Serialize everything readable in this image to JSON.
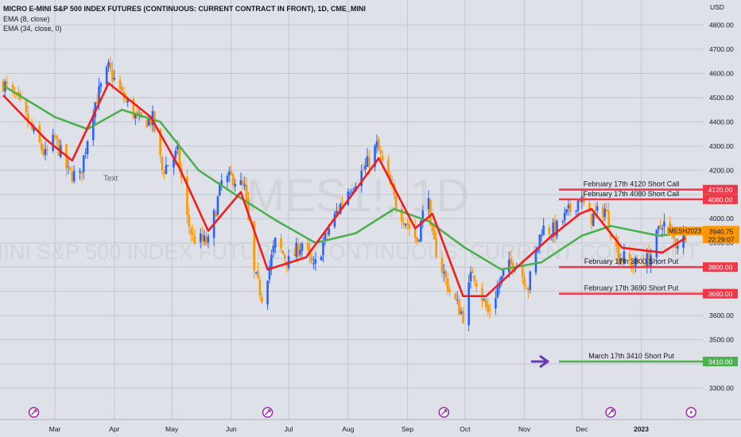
{
  "header": {
    "title": "MICRO E-MINI S&P 500 INDEX FUTURES (CONTINUOUS: CURRENT CONTRACT IN FRONT), 1D, CME_MINI",
    "ema8": "EMA (8, close)",
    "ema34": "EMA (34, close, 0)"
  },
  "watermark": {
    "symbol": "MES1!, 1D",
    "name": "MICRO E-MINI S&P 500 INDEX FUTURES (CONTINUOUS: CURRENT CONTRACT IN FRONT)"
  },
  "colors": {
    "background": "#dfe1e8",
    "grid": "#c4c7cf",
    "candle_up": "#2962ff",
    "candle_down": "#ff9800",
    "ema8": "#f21d1d",
    "ema34": "#4caf50",
    "level_line": "#f23645",
    "target_line": "#4caf50",
    "arrow": "#673ab7",
    "price_tag": "#ff9800"
  },
  "chart_data": {
    "type": "candlestick",
    "currency_label": "USD",
    "ylim": [
      3260,
      4880
    ],
    "y_ticks": [
      "3300.00",
      "3400.00",
      "3500.00",
      "3600.00",
      "3700.00",
      "3800.00",
      "3900.00",
      "4000.00",
      "4100.00",
      "4200.00",
      "4300.00",
      "4400.00",
      "4500.00",
      "4600.00",
      "4700.00",
      "4800.00"
    ],
    "x_ticks": [
      "Mar",
      "Apr",
      "May",
      "Jun",
      "Jul",
      "Aug",
      "Sep",
      "Oct",
      "Nov",
      "Dec",
      "2023"
    ],
    "x_tick_dates": [
      "2022-03-01",
      "2022-04-01",
      "2022-05-01",
      "2022-06-01",
      "2022-07-01",
      "2022-08-01",
      "2022-09-01",
      "2022-10-01",
      "2022-11-01",
      "2022-12-01",
      "2023-01-01"
    ],
    "date_range": [
      "2022-02-02",
      "2023-01-24"
    ],
    "close_series": [
      {
        "date": "2022-02-02",
        "close": 4560
      },
      {
        "date": "2022-02-10",
        "close": 4480
      },
      {
        "date": "2022-02-18",
        "close": 4350
      },
      {
        "date": "2022-02-24",
        "close": 4260
      },
      {
        "date": "2022-03-01",
        "close": 4330
      },
      {
        "date": "2022-03-08",
        "close": 4190
      },
      {
        "date": "2022-03-14",
        "close": 4170
      },
      {
        "date": "2022-03-21",
        "close": 4460
      },
      {
        "date": "2022-03-29",
        "close": 4620
      },
      {
        "date": "2022-04-05",
        "close": 4510
      },
      {
        "date": "2022-04-14",
        "close": 4400
      },
      {
        "date": "2022-04-21",
        "close": 4410
      },
      {
        "date": "2022-04-26",
        "close": 4200
      },
      {
        "date": "2022-05-04",
        "close": 4270
      },
      {
        "date": "2022-05-09",
        "close": 4000
      },
      {
        "date": "2022-05-12",
        "close": 3920
      },
      {
        "date": "2022-05-20",
        "close": 3900
      },
      {
        "date": "2022-05-27",
        "close": 4150
      },
      {
        "date": "2022-06-02",
        "close": 4170
      },
      {
        "date": "2022-06-08",
        "close": 4120
      },
      {
        "date": "2022-06-13",
        "close": 3770
      },
      {
        "date": "2022-06-17",
        "close": 3680
      },
      {
        "date": "2022-06-24",
        "close": 3900
      },
      {
        "date": "2022-07-01",
        "close": 3820
      },
      {
        "date": "2022-07-08",
        "close": 3900
      },
      {
        "date": "2022-07-14",
        "close": 3790
      },
      {
        "date": "2022-07-22",
        "close": 3960
      },
      {
        "date": "2022-08-01",
        "close": 4120
      },
      {
        "date": "2022-08-10",
        "close": 4210
      },
      {
        "date": "2022-08-16",
        "close": 4300
      },
      {
        "date": "2022-08-26",
        "close": 4060
      },
      {
        "date": "2022-09-06",
        "close": 3910
      },
      {
        "date": "2022-09-12",
        "close": 4120
      },
      {
        "date": "2022-09-13",
        "close": 3940
      },
      {
        "date": "2022-09-23",
        "close": 3700
      },
      {
        "date": "2022-09-30",
        "close": 3600
      },
      {
        "date": "2022-10-05",
        "close": 3790
      },
      {
        "date": "2022-10-13",
        "close": 3610
      },
      {
        "date": "2022-10-21",
        "close": 3770
      },
      {
        "date": "2022-10-27",
        "close": 3830
      },
      {
        "date": "2022-11-03",
        "close": 3720
      },
      {
        "date": "2022-11-10",
        "close": 3960
      },
      {
        "date": "2022-11-17",
        "close": 3950
      },
      {
        "date": "2022-11-30",
        "close": 4090
      },
      {
        "date": "2022-12-05",
        "close": 4000
      },
      {
        "date": "2022-12-13",
        "close": 4040
      },
      {
        "date": "2022-12-20",
        "close": 3850
      },
      {
        "date": "2022-12-28",
        "close": 3810
      },
      {
        "date": "2023-01-05",
        "close": 3830
      },
      {
        "date": "2023-01-12",
        "close": 3990
      },
      {
        "date": "2023-01-19",
        "close": 3900
      },
      {
        "date": "2023-01-24",
        "close": 3940
      }
    ],
    "ema8_values": [
      {
        "date": "2022-02-02",
        "value": 4510
      },
      {
        "date": "2022-02-24",
        "value": 4330
      },
      {
        "date": "2022-03-10",
        "value": 4240
      },
      {
        "date": "2022-03-29",
        "value": 4560
      },
      {
        "date": "2022-04-20",
        "value": 4420
      },
      {
        "date": "2022-05-05",
        "value": 4210
      },
      {
        "date": "2022-05-20",
        "value": 3950
      },
      {
        "date": "2022-06-06",
        "value": 4110
      },
      {
        "date": "2022-06-20",
        "value": 3790
      },
      {
        "date": "2022-07-10",
        "value": 3840
      },
      {
        "date": "2022-08-05",
        "value": 4120
      },
      {
        "date": "2022-08-17",
        "value": 4250
      },
      {
        "date": "2022-09-05",
        "value": 3960
      },
      {
        "date": "2022-09-14",
        "value": 4020
      },
      {
        "date": "2022-09-30",
        "value": 3680
      },
      {
        "date": "2022-10-12",
        "value": 3680
      },
      {
        "date": "2022-10-31",
        "value": 3820
      },
      {
        "date": "2022-11-14",
        "value": 3920
      },
      {
        "date": "2022-11-30",
        "value": 4020
      },
      {
        "date": "2022-12-06",
        "value": 4040
      },
      {
        "date": "2022-12-22",
        "value": 3880
      },
      {
        "date": "2023-01-12",
        "value": 3860
      },
      {
        "date": "2023-01-24",
        "value": 3920
      }
    ],
    "ema34_values": [
      {
        "date": "2022-02-02",
        "value": 4550
      },
      {
        "date": "2022-03-01",
        "value": 4420
      },
      {
        "date": "2022-03-18",
        "value": 4370
      },
      {
        "date": "2022-04-05",
        "value": 4450
      },
      {
        "date": "2022-04-25",
        "value": 4400
      },
      {
        "date": "2022-05-15",
        "value": 4200
      },
      {
        "date": "2022-06-05",
        "value": 4090
      },
      {
        "date": "2022-06-25",
        "value": 3990
      },
      {
        "date": "2022-07-15",
        "value": 3900
      },
      {
        "date": "2022-08-05",
        "value": 3940
      },
      {
        "date": "2022-08-25",
        "value": 4040
      },
      {
        "date": "2022-09-12",
        "value": 3990
      },
      {
        "date": "2022-10-01",
        "value": 3880
      },
      {
        "date": "2022-10-20",
        "value": 3790
      },
      {
        "date": "2022-11-10",
        "value": 3820
      },
      {
        "date": "2022-12-01",
        "value": 3930
      },
      {
        "date": "2022-12-16",
        "value": 3970
      },
      {
        "date": "2023-01-10",
        "value": 3930
      },
      {
        "date": "2023-01-24",
        "value": 3940
      }
    ]
  },
  "levels": [
    {
      "price": 4120,
      "text": "February 17th 4120 Short Call",
      "tag": "4120.00",
      "kind": "red"
    },
    {
      "price": 4080,
      "text": "February 17th 4080 Short Call",
      "tag": "4080.00",
      "kind": "red"
    },
    {
      "price": 3800,
      "text": "February 17th 3800 Short Put",
      "tag": "3800.00",
      "kind": "red"
    },
    {
      "price": 3690,
      "text": "February 17th 3690 Short Put",
      "tag": "3690.00",
      "kind": "red"
    },
    {
      "price": 3410,
      "text": "March 17th 3410 Short Put",
      "tag": "3410.00",
      "kind": "green"
    }
  ],
  "price_tag": {
    "symbol": "MESH2023",
    "price": "3940.75",
    "countdown": "22:29:07",
    "value": 3940.75
  },
  "annotation_text": "Text",
  "events": [
    {
      "date": "2022-02-18",
      "icon": "earnings-icon"
    },
    {
      "date": "2022-06-20",
      "icon": "earnings-icon"
    },
    {
      "date": "2022-09-20",
      "icon": "earnings-icon"
    },
    {
      "date": "2022-12-16",
      "icon": "earnings-icon"
    },
    {
      "date": "2023-01-27",
      "icon": "lightning-icon"
    }
  ]
}
